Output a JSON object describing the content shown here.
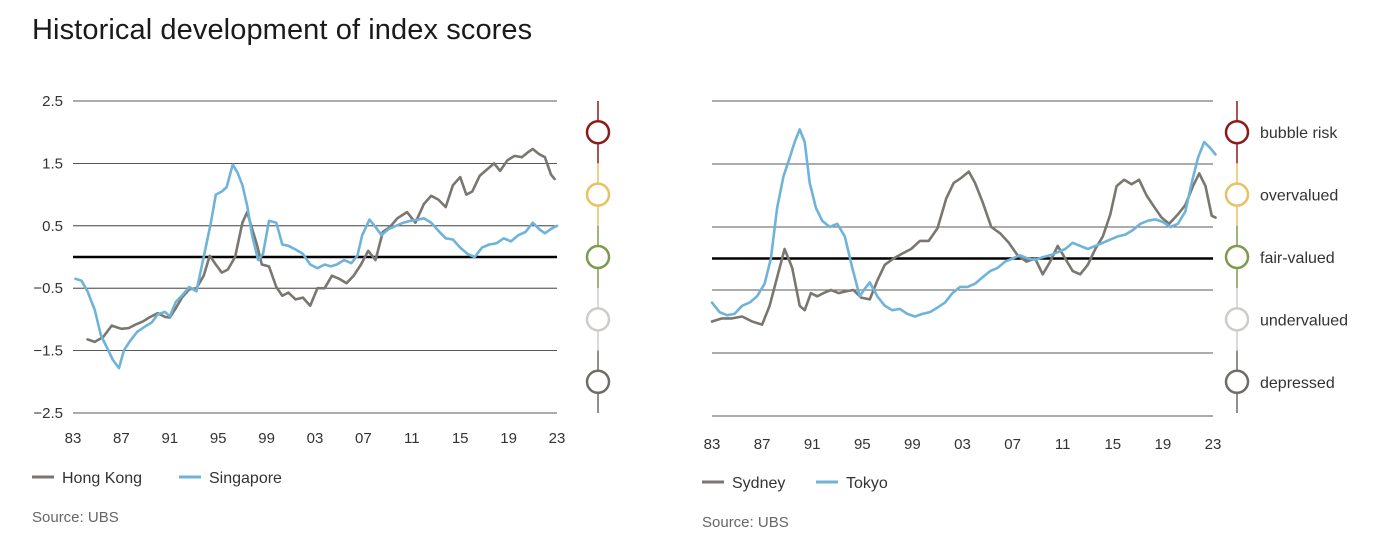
{
  "title": "Historical development of index scores",
  "source_left": "Source: UBS",
  "source_right": "Source: UBS",
  "colors": {
    "series_gray": "#7a7670",
    "series_blue": "#6fb3d9",
    "grid": "#222222",
    "zero": "#000000",
    "scale_line": "#b8b4ae"
  },
  "scale": [
    {
      "label": "bubble risk",
      "color": "#8b1a1a"
    },
    {
      "label": "overvalued",
      "color": "#e8c261"
    },
    {
      "label": "fair-valued",
      "color": "#7d9a4e"
    },
    {
      "label": "undervalued",
      "color": "#cfccc7"
    },
    {
      "label": "depressed",
      "color": "#6f6b66"
    }
  ],
  "chart_data": [
    {
      "type": "line",
      "xlabel": "",
      "ylabel": "",
      "ylim": [
        -2.5,
        2.5
      ],
      "xlim": [
        1983,
        2023
      ],
      "y_ticks": [
        2.5,
        1.5,
        0.5,
        -0.5,
        -1.5,
        -2.5
      ],
      "y_tick_labels": [
        "2.5",
        "1.5",
        "0.5",
        "−0.5",
        "−1.5",
        "−2.5"
      ],
      "x_ticks": [
        1983,
        1987,
        1991,
        1995,
        1999,
        2003,
        2007,
        2011,
        2015,
        2019,
        2023
      ],
      "x_tick_labels": [
        "83",
        "87",
        "91",
        "95",
        "99",
        "03",
        "07",
        "11",
        "15",
        "19",
        "23"
      ],
      "series": [
        {
          "name": "Hong Kong",
          "color": "#7a7670",
          "x": [
            1984.2,
            1984.8,
            1985.5,
            1986.2,
            1987,
            1987.6,
            1988.2,
            1988.8,
            1989.3,
            1990,
            1990.6,
            1991,
            1991.5,
            1992,
            1992.6,
            1993.2,
            1993.8,
            1994.3,
            1994.8,
            1995.3,
            1995.8,
            1996.4,
            1997,
            1997.4,
            1997.8,
            1998.2,
            1998.6,
            1999.2,
            1999.8,
            2000.3,
            2000.8,
            2001.4,
            2002,
            2002.6,
            2003.2,
            2003.8,
            2004.4,
            2005,
            2005.6,
            2006.2,
            2006.8,
            2007.4,
            2008,
            2008.6,
            2009.2,
            2009.8,
            2010.6,
            2011.3,
            2012,
            2012.6,
            2013.2,
            2013.8,
            2014.4,
            2015,
            2015.5,
            2016,
            2016.6,
            2017.2,
            2017.8,
            2018.3,
            2018.9,
            2019.5,
            2020.1,
            2020.6,
            2021,
            2021.5,
            2022,
            2022.5,
            2022.8
          ],
          "values": [
            -1.32,
            -1.36,
            -1.28,
            -1.1,
            -1.15,
            -1.14,
            -1.08,
            -1.03,
            -0.97,
            -0.9,
            -0.96,
            -0.97,
            -0.82,
            -0.65,
            -0.52,
            -0.5,
            -0.3,
            0.02,
            -0.12,
            -0.25,
            -0.2,
            0.0,
            0.55,
            0.72,
            0.45,
            0.2,
            -0.12,
            -0.15,
            -0.48,
            -0.62,
            -0.57,
            -0.68,
            -0.65,
            -0.78,
            -0.5,
            -0.5,
            -0.3,
            -0.35,
            -0.42,
            -0.3,
            -0.12,
            0.1,
            -0.05,
            0.4,
            0.48,
            0.62,
            0.72,
            0.55,
            0.85,
            0.98,
            0.92,
            0.8,
            1.15,
            1.28,
            1.0,
            1.05,
            1.3,
            1.4,
            1.5,
            1.38,
            1.55,
            1.62,
            1.6,
            1.68,
            1.73,
            1.65,
            1.6,
            1.32,
            1.25
          ]
        },
        {
          "name": "Singapore",
          "color": "#6fb3d9",
          "x": [
            1983.2,
            1983.7,
            1984.2,
            1984.8,
            1985.3,
            1985.8,
            1986.3,
            1986.8,
            1987.2,
            1987.7,
            1988.3,
            1988.9,
            1989.5,
            1990,
            1990.6,
            1991,
            1991.5,
            1992,
            1992.6,
            1993.2,
            1993.8,
            1994.4,
            1994.8,
            1995.3,
            1995.7,
            1996.2,
            1996.6,
            1997,
            1997.4,
            1997.8,
            1998.3,
            1998.7,
            1999.2,
            1999.8,
            2000.3,
            2000.8,
            2001.4,
            2002,
            2002.6,
            2003.2,
            2003.8,
            2004.3,
            2004.8,
            2005.4,
            2006,
            2006.5,
            2006.9,
            2007.5,
            2008,
            2008.5,
            2009.1,
            2009.7,
            2010.3,
            2010.9,
            2011.5,
            2012,
            2012.6,
            2013.2,
            2013.8,
            2014.4,
            2015,
            2015.6,
            2016.2,
            2016.8,
            2017.4,
            2018,
            2018.6,
            2019.2,
            2019.8,
            2020.4,
            2021,
            2021.5,
            2022,
            2022.5,
            2023
          ],
          "values": [
            -0.35,
            -0.38,
            -0.55,
            -0.85,
            -1.25,
            -1.45,
            -1.65,
            -1.78,
            -1.5,
            -1.35,
            -1.2,
            -1.12,
            -1.05,
            -0.92,
            -0.88,
            -0.95,
            -0.72,
            -0.62,
            -0.48,
            -0.55,
            0.0,
            0.55,
            1.0,
            1.05,
            1.12,
            1.48,
            1.35,
            1.15,
            0.82,
            0.35,
            -0.05,
            0.05,
            0.58,
            0.55,
            0.2,
            0.18,
            0.12,
            0.05,
            -0.12,
            -0.18,
            -0.12,
            -0.15,
            -0.12,
            -0.05,
            -0.1,
            0.02,
            0.35,
            0.6,
            0.48,
            0.35,
            0.45,
            0.5,
            0.55,
            0.58,
            0.6,
            0.62,
            0.55,
            0.42,
            0.3,
            0.28,
            0.15,
            0.05,
            0.0,
            0.15,
            0.2,
            0.22,
            0.3,
            0.25,
            0.35,
            0.4,
            0.55,
            0.45,
            0.38,
            0.45,
            0.5
          ]
        }
      ]
    },
    {
      "type": "line",
      "xlabel": "",
      "ylabel": "",
      "ylim": [
        -2.5,
        2.5
      ],
      "xlim": [
        1983,
        2023
      ],
      "y_ticks": [
        2.5,
        1.5,
        0.5,
        -0.5,
        -1.5,
        -2.5
      ],
      "y_tick_labels": [],
      "x_ticks": [
        1983,
        1987,
        1991,
        1995,
        1999,
        2003,
        2007,
        2011,
        2015,
        2019,
        2023
      ],
      "x_tick_labels": [
        "83",
        "87",
        "91",
        "95",
        "99",
        "03",
        "07",
        "11",
        "15",
        "19",
        "23"
      ],
      "series": [
        {
          "name": "Sydney",
          "color": "#7a7670",
          "x": [
            1983,
            1983.8,
            1984.6,
            1985.4,
            1986.2,
            1987,
            1987.6,
            1988.2,
            1988.8,
            1989.4,
            1990,
            1990.4,
            1990.9,
            1991.4,
            1991.9,
            1992.5,
            1993.1,
            1993.7,
            1994.3,
            1994.9,
            1995.6,
            1996.2,
            1996.8,
            1997.5,
            1998.2,
            1998.9,
            1999.6,
            2000.3,
            2001,
            2001.7,
            2002.3,
            2002.9,
            2003.5,
            2004,
            2004.6,
            2005.3,
            2006,
            2006.7,
            2007.4,
            2008.1,
            2008.8,
            2009.4,
            2010,
            2010.6,
            2011.2,
            2011.8,
            2012.4,
            2013,
            2013.6,
            2014.2,
            2014.8,
            2015.3,
            2015.9,
            2016.5,
            2017.1,
            2017.7,
            2018.3,
            2018.9,
            2019.5,
            2020.2,
            2020.8,
            2021.4,
            2021.9,
            2022.4,
            2022.9,
            2023.2
          ],
          "values": [
            -1.0,
            -0.95,
            -0.95,
            -0.92,
            -1.0,
            -1.05,
            -0.75,
            -0.3,
            0.15,
            -0.15,
            -0.75,
            -0.82,
            -0.55,
            -0.6,
            -0.55,
            -0.5,
            -0.55,
            -0.52,
            -0.5,
            -0.62,
            -0.65,
            -0.35,
            -0.1,
            0.0,
            0.08,
            0.15,
            0.28,
            0.28,
            0.48,
            0.95,
            1.2,
            1.28,
            1.38,
            1.2,
            0.9,
            0.5,
            0.4,
            0.25,
            0.05,
            -0.05,
            0.0,
            -0.25,
            -0.05,
            0.2,
            0.0,
            -0.2,
            -0.25,
            -0.1,
            0.15,
            0.35,
            0.7,
            1.15,
            1.25,
            1.18,
            1.25,
            1.0,
            0.82,
            0.65,
            0.55,
            0.7,
            0.85,
            1.15,
            1.35,
            1.15,
            0.68,
            0.65
          ]
        },
        {
          "name": "Tokyo",
          "color": "#6fb3d9",
          "x": [
            1983,
            1983.6,
            1984.2,
            1984.8,
            1985.4,
            1986,
            1986.6,
            1987.2,
            1987.7,
            1988.2,
            1988.7,
            1989.2,
            1989.6,
            1990,
            1990.4,
            1990.8,
            1991.3,
            1991.8,
            1992.4,
            1993,
            1993.6,
            1994.2,
            1994.8,
            1995.2,
            1995.6,
            1996.2,
            1996.8,
            1997.4,
            1998,
            1998.6,
            1999.2,
            1999.8,
            2000.4,
            2001,
            2001.6,
            2002.2,
            2002.8,
            2003.4,
            2004,
            2004.6,
            2005.2,
            2005.8,
            2006.4,
            2007,
            2007.6,
            2008.2,
            2008.8,
            2009.4,
            2010,
            2010.6,
            2011.2,
            2011.8,
            2012.4,
            2013,
            2013.6,
            2014.2,
            2014.8,
            2015.4,
            2016,
            2016.6,
            2017.2,
            2017.8,
            2018.4,
            2019,
            2019.6,
            2020.2,
            2020.8,
            2021.3,
            2021.8,
            2022.3,
            2022.8,
            2023.2
          ],
          "values": [
            -0.7,
            -0.85,
            -0.9,
            -0.88,
            -0.75,
            -0.7,
            -0.6,
            -0.4,
            0.0,
            0.8,
            1.3,
            1.6,
            1.85,
            2.05,
            1.85,
            1.2,
            0.8,
            0.6,
            0.5,
            0.55,
            0.35,
            -0.15,
            -0.6,
            -0.48,
            -0.38,
            -0.6,
            -0.75,
            -0.82,
            -0.8,
            -0.88,
            -0.92,
            -0.88,
            -0.85,
            -0.78,
            -0.7,
            -0.55,
            -0.45,
            -0.45,
            -0.4,
            -0.3,
            -0.2,
            -0.15,
            -0.05,
            0.0,
            0.05,
            0.0,
            -0.02,
            0.02,
            0.05,
            0.1,
            0.15,
            0.25,
            0.2,
            0.15,
            0.2,
            0.25,
            0.3,
            0.35,
            0.38,
            0.45,
            0.55,
            0.6,
            0.62,
            0.58,
            0.5,
            0.55,
            0.75,
            1.2,
            1.6,
            1.85,
            1.75,
            1.65
          ]
        }
      ]
    }
  ]
}
